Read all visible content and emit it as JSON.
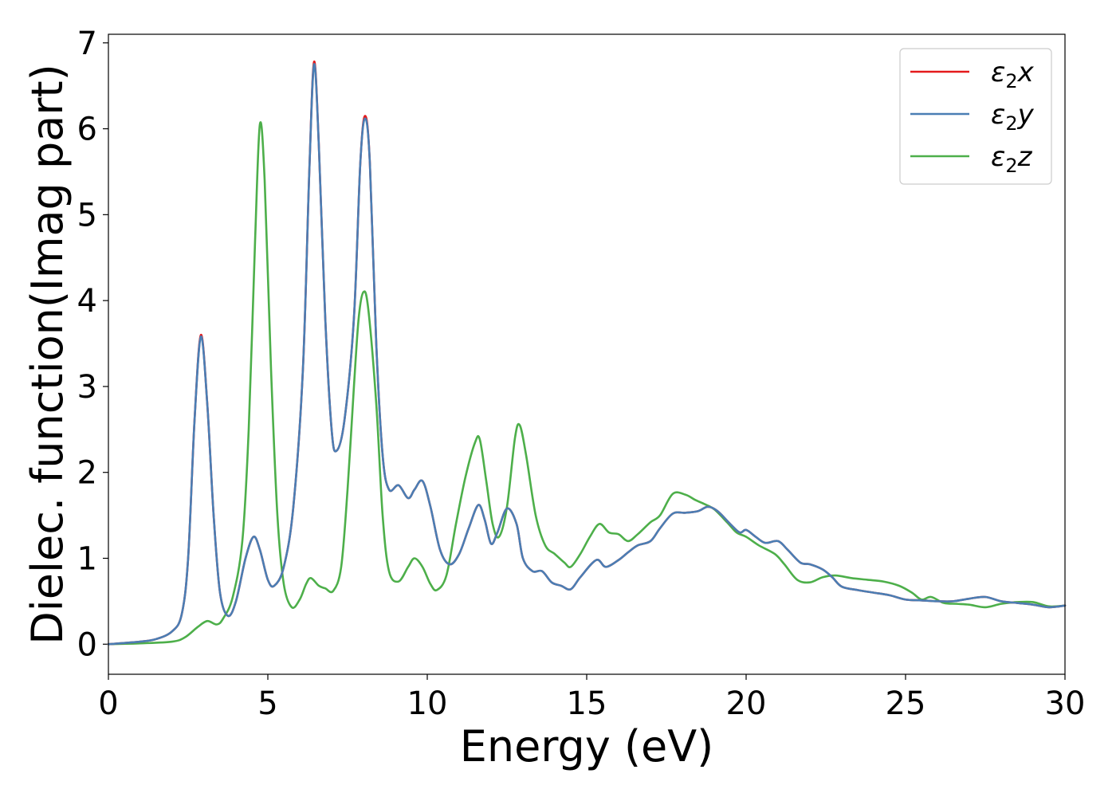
{
  "chart_data": {
    "type": "line",
    "xlabel": "Energy (eV)",
    "ylabel": "Dielec. function(Imag part)",
    "xlim": [
      0,
      30
    ],
    "ylim": [
      -0.35,
      7.1
    ],
    "xticks": [
      0,
      5,
      10,
      15,
      20,
      25,
      30
    ],
    "yticks": [
      0,
      1,
      2,
      3,
      4,
      5,
      6,
      7
    ],
    "grid": false,
    "legend_position": "top-right",
    "series": [
      {
        "name": "ε2x",
        "legend_base": "ε",
        "legend_sub": "2",
        "legend_tail": "x",
        "color": "#e41a1c",
        "points": [
          [
            0,
            0
          ],
          [
            1,
            0.03
          ],
          [
            1.5,
            0.06
          ],
          [
            2,
            0.15
          ],
          [
            2.3,
            0.35
          ],
          [
            2.5,
            1.0
          ],
          [
            2.7,
            2.6
          ],
          [
            2.9,
            3.6
          ],
          [
            3.1,
            2.8
          ],
          [
            3.3,
            1.5
          ],
          [
            3.5,
            0.6
          ],
          [
            3.75,
            0.33
          ],
          [
            4,
            0.5
          ],
          [
            4.3,
            1.0
          ],
          [
            4.55,
            1.25
          ],
          [
            4.75,
            1.1
          ],
          [
            5,
            0.75
          ],
          [
            5.2,
            0.68
          ],
          [
            5.5,
            0.9
          ],
          [
            5.8,
            1.6
          ],
          [
            6.1,
            3.2
          ],
          [
            6.3,
            5.5
          ],
          [
            6.45,
            6.78
          ],
          [
            6.6,
            5.8
          ],
          [
            6.8,
            3.8
          ],
          [
            7,
            2.5
          ],
          [
            7.15,
            2.25
          ],
          [
            7.4,
            2.6
          ],
          [
            7.7,
            3.8
          ],
          [
            7.9,
            5.6
          ],
          [
            8.05,
            6.15
          ],
          [
            8.2,
            5.6
          ],
          [
            8.4,
            3.5
          ],
          [
            8.6,
            2.2
          ],
          [
            8.8,
            1.8
          ],
          [
            9.1,
            1.85
          ],
          [
            9.4,
            1.7
          ],
          [
            9.6,
            1.8
          ],
          [
            9.85,
            1.9
          ],
          [
            10.1,
            1.6
          ],
          [
            10.4,
            1.1
          ],
          [
            10.7,
            0.93
          ],
          [
            11,
            1.05
          ],
          [
            11.3,
            1.35
          ],
          [
            11.6,
            1.62
          ],
          [
            11.8,
            1.45
          ],
          [
            12,
            1.17
          ],
          [
            12.2,
            1.3
          ],
          [
            12.5,
            1.58
          ],
          [
            12.8,
            1.4
          ],
          [
            13,
            1.0
          ],
          [
            13.3,
            0.85
          ],
          [
            13.6,
            0.85
          ],
          [
            13.9,
            0.72
          ],
          [
            14.2,
            0.68
          ],
          [
            14.5,
            0.64
          ],
          [
            14.8,
            0.78
          ],
          [
            15.3,
            0.98
          ],
          [
            15.6,
            0.9
          ],
          [
            16,
            0.98
          ],
          [
            16.3,
            1.07
          ],
          [
            16.6,
            1.15
          ],
          [
            17,
            1.2
          ],
          [
            17.3,
            1.35
          ],
          [
            17.7,
            1.52
          ],
          [
            18.1,
            1.53
          ],
          [
            18.5,
            1.55
          ],
          [
            18.8,
            1.6
          ],
          [
            19.1,
            1.55
          ],
          [
            19.5,
            1.4
          ],
          [
            19.8,
            1.3
          ],
          [
            20,
            1.33
          ],
          [
            20.3,
            1.25
          ],
          [
            20.6,
            1.18
          ],
          [
            21,
            1.2
          ],
          [
            21.3,
            1.1
          ],
          [
            21.7,
            0.95
          ],
          [
            22,
            0.93
          ],
          [
            22.4,
            0.87
          ],
          [
            22.7,
            0.78
          ],
          [
            23,
            0.67
          ],
          [
            23.5,
            0.63
          ],
          [
            24,
            0.6
          ],
          [
            24.5,
            0.57
          ],
          [
            25,
            0.52
          ],
          [
            25.5,
            0.51
          ],
          [
            26,
            0.5
          ],
          [
            26.5,
            0.5
          ],
          [
            27,
            0.53
          ],
          [
            27.5,
            0.55
          ],
          [
            28,
            0.5
          ],
          [
            28.5,
            0.48
          ],
          [
            29,
            0.46
          ],
          [
            29.5,
            0.43
          ],
          [
            30,
            0.45
          ]
        ]
      },
      {
        "name": "ε2y",
        "legend_base": "ε",
        "legend_sub": "2",
        "legend_tail": "y",
        "color": "#4a7eb4",
        "points": [
          [
            0,
            0
          ],
          [
            1,
            0.03
          ],
          [
            1.5,
            0.06
          ],
          [
            2,
            0.15
          ],
          [
            2.3,
            0.35
          ],
          [
            2.5,
            1.0
          ],
          [
            2.7,
            2.6
          ],
          [
            2.9,
            3.58
          ],
          [
            3.1,
            2.8
          ],
          [
            3.3,
            1.5
          ],
          [
            3.5,
            0.6
          ],
          [
            3.75,
            0.33
          ],
          [
            4,
            0.5
          ],
          [
            4.3,
            1.0
          ],
          [
            4.55,
            1.25
          ],
          [
            4.75,
            1.1
          ],
          [
            5,
            0.75
          ],
          [
            5.2,
            0.68
          ],
          [
            5.5,
            0.9
          ],
          [
            5.8,
            1.6
          ],
          [
            6.1,
            3.2
          ],
          [
            6.3,
            5.5
          ],
          [
            6.45,
            6.75
          ],
          [
            6.6,
            5.8
          ],
          [
            6.8,
            3.8
          ],
          [
            7,
            2.5
          ],
          [
            7.15,
            2.25
          ],
          [
            7.4,
            2.6
          ],
          [
            7.7,
            3.8
          ],
          [
            7.9,
            5.6
          ],
          [
            8.05,
            6.12
          ],
          [
            8.2,
            5.6
          ],
          [
            8.4,
            3.5
          ],
          [
            8.6,
            2.2
          ],
          [
            8.8,
            1.8
          ],
          [
            9.1,
            1.85
          ],
          [
            9.4,
            1.7
          ],
          [
            9.6,
            1.8
          ],
          [
            9.85,
            1.9
          ],
          [
            10.1,
            1.6
          ],
          [
            10.4,
            1.1
          ],
          [
            10.7,
            0.93
          ],
          [
            11,
            1.05
          ],
          [
            11.3,
            1.35
          ],
          [
            11.6,
            1.62
          ],
          [
            11.8,
            1.45
          ],
          [
            12,
            1.17
          ],
          [
            12.2,
            1.3
          ],
          [
            12.5,
            1.58
          ],
          [
            12.8,
            1.4
          ],
          [
            13,
            1.0
          ],
          [
            13.3,
            0.85
          ],
          [
            13.6,
            0.85
          ],
          [
            13.9,
            0.72
          ],
          [
            14.2,
            0.68
          ],
          [
            14.5,
            0.64
          ],
          [
            14.8,
            0.78
          ],
          [
            15.3,
            0.98
          ],
          [
            15.6,
            0.9
          ],
          [
            16,
            0.98
          ],
          [
            16.3,
            1.07
          ],
          [
            16.6,
            1.15
          ],
          [
            17,
            1.2
          ],
          [
            17.3,
            1.35
          ],
          [
            17.7,
            1.52
          ],
          [
            18.1,
            1.53
          ],
          [
            18.5,
            1.55
          ],
          [
            18.8,
            1.6
          ],
          [
            19.1,
            1.55
          ],
          [
            19.5,
            1.4
          ],
          [
            19.8,
            1.3
          ],
          [
            20,
            1.33
          ],
          [
            20.3,
            1.25
          ],
          [
            20.6,
            1.18
          ],
          [
            21,
            1.2
          ],
          [
            21.3,
            1.1
          ],
          [
            21.7,
            0.95
          ],
          [
            22,
            0.93
          ],
          [
            22.4,
            0.87
          ],
          [
            22.7,
            0.78
          ],
          [
            23,
            0.67
          ],
          [
            23.5,
            0.63
          ],
          [
            24,
            0.6
          ],
          [
            24.5,
            0.57
          ],
          [
            25,
            0.52
          ],
          [
            25.5,
            0.51
          ],
          [
            26,
            0.5
          ],
          [
            26.5,
            0.5
          ],
          [
            27,
            0.53
          ],
          [
            27.5,
            0.55
          ],
          [
            28,
            0.5
          ],
          [
            28.5,
            0.48
          ],
          [
            29,
            0.46
          ],
          [
            29.5,
            0.43
          ],
          [
            30,
            0.45
          ]
        ]
      },
      {
        "name": "ε2z",
        "legend_base": "ε",
        "legend_sub": "2",
        "legend_tail": "z",
        "color": "#4daf4a",
        "points": [
          [
            0,
            0
          ],
          [
            1,
            0.01
          ],
          [
            2,
            0.03
          ],
          [
            2.4,
            0.08
          ],
          [
            2.8,
            0.2
          ],
          [
            3.1,
            0.27
          ],
          [
            3.4,
            0.23
          ],
          [
            3.6,
            0.3
          ],
          [
            3.9,
            0.55
          ],
          [
            4.2,
            1.2
          ],
          [
            4.4,
            2.5
          ],
          [
            4.6,
            4.7
          ],
          [
            4.75,
            6.05
          ],
          [
            4.9,
            5.4
          ],
          [
            5.1,
            3.2
          ],
          [
            5.3,
            1.5
          ],
          [
            5.5,
            0.7
          ],
          [
            5.75,
            0.43
          ],
          [
            6,
            0.52
          ],
          [
            6.2,
            0.7
          ],
          [
            6.35,
            0.77
          ],
          [
            6.6,
            0.68
          ],
          [
            6.8,
            0.65
          ],
          [
            7.05,
            0.62
          ],
          [
            7.3,
            0.9
          ],
          [
            7.5,
            1.8
          ],
          [
            7.7,
            3.0
          ],
          [
            7.85,
            3.8
          ],
          [
            8.0,
            4.1
          ],
          [
            8.15,
            3.9
          ],
          [
            8.4,
            2.8
          ],
          [
            8.6,
            1.5
          ],
          [
            8.8,
            0.85
          ],
          [
            9.1,
            0.73
          ],
          [
            9.4,
            0.9
          ],
          [
            9.6,
            1.0
          ],
          [
            9.85,
            0.9
          ],
          [
            10.1,
            0.7
          ],
          [
            10.3,
            0.63
          ],
          [
            10.6,
            0.8
          ],
          [
            10.9,
            1.4
          ],
          [
            11.2,
            1.95
          ],
          [
            11.5,
            2.35
          ],
          [
            11.65,
            2.38
          ],
          [
            11.85,
            1.9
          ],
          [
            12.05,
            1.4
          ],
          [
            12.25,
            1.25
          ],
          [
            12.5,
            1.6
          ],
          [
            12.75,
            2.4
          ],
          [
            12.9,
            2.55
          ],
          [
            13.1,
            2.2
          ],
          [
            13.4,
            1.5
          ],
          [
            13.7,
            1.15
          ],
          [
            14,
            1.05
          ],
          [
            14.3,
            0.95
          ],
          [
            14.5,
            0.9
          ],
          [
            14.8,
            1.05
          ],
          [
            15.1,
            1.25
          ],
          [
            15.4,
            1.4
          ],
          [
            15.7,
            1.3
          ],
          [
            16,
            1.28
          ],
          [
            16.3,
            1.2
          ],
          [
            16.6,
            1.28
          ],
          [
            17,
            1.42
          ],
          [
            17.3,
            1.5
          ],
          [
            17.7,
            1.75
          ],
          [
            18.1,
            1.74
          ],
          [
            18.4,
            1.68
          ],
          [
            18.7,
            1.63
          ],
          [
            19,
            1.57
          ],
          [
            19.4,
            1.42
          ],
          [
            19.7,
            1.3
          ],
          [
            20,
            1.25
          ],
          [
            20.4,
            1.15
          ],
          [
            20.9,
            1.05
          ],
          [
            21.2,
            0.93
          ],
          [
            21.6,
            0.75
          ],
          [
            22,
            0.72
          ],
          [
            22.4,
            0.78
          ],
          [
            22.8,
            0.8
          ],
          [
            23.3,
            0.77
          ],
          [
            23.8,
            0.75
          ],
          [
            24.3,
            0.73
          ],
          [
            24.8,
            0.68
          ],
          [
            25.2,
            0.6
          ],
          [
            25.5,
            0.52
          ],
          [
            25.8,
            0.55
          ],
          [
            26.2,
            0.48
          ],
          [
            26.6,
            0.47
          ],
          [
            27,
            0.46
          ],
          [
            27.5,
            0.43
          ],
          [
            28,
            0.47
          ],
          [
            28.5,
            0.49
          ],
          [
            29,
            0.49
          ],
          [
            29.5,
            0.44
          ],
          [
            30,
            0.45
          ]
        ]
      }
    ]
  }
}
